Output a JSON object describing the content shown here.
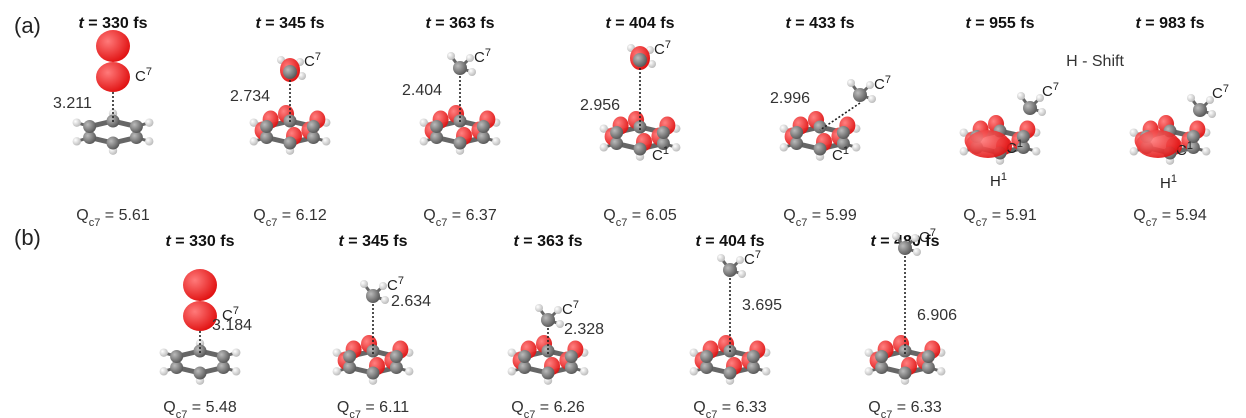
{
  "panels": [
    {
      "label": "(a)",
      "frames": [
        {
          "time": "330 fs",
          "distance": "3.211",
          "charge": "5.61",
          "atoms": [
            "C7"
          ]
        },
        {
          "time": "345 fs",
          "distance": "2.734",
          "charge": "6.12",
          "atoms": [
            "C7"
          ]
        },
        {
          "time": "363 fs",
          "distance": "2.404",
          "charge": "6.37",
          "atoms": [
            "C7"
          ]
        },
        {
          "time": "404 fs",
          "distance": "2.956",
          "charge": "6.05",
          "atoms": [
            "C7",
            "C1"
          ]
        },
        {
          "time": "433 fs",
          "distance": "2.996",
          "charge": "5.99",
          "atoms": [
            "C7",
            "C1"
          ]
        },
        {
          "time": "955 fs",
          "distance": "",
          "charge": "5.91",
          "atoms": [
            "C7",
            "C1",
            "H1"
          ]
        },
        {
          "time": "983 fs",
          "distance": "",
          "charge": "5.94",
          "atoms": [
            "C1",
            "C7",
            "H1"
          ]
        }
      ],
      "note": "H - Shift"
    },
    {
      "label": "(b)",
      "frames": [
        {
          "time": "330 fs",
          "distance": "3.184",
          "charge": "5.48",
          "atoms": [
            "C7"
          ]
        },
        {
          "time": "345 fs",
          "distance": "2.634",
          "charge": "6.11",
          "atoms": [
            "C7"
          ]
        },
        {
          "time": "363 fs",
          "distance": "2.328",
          "charge": "6.26",
          "atoms": [
            "C7"
          ]
        },
        {
          "time": "404 fs",
          "distance": "3.695",
          "charge": "6.33",
          "atoms": [
            "C7"
          ]
        },
        {
          "time": "480 fs",
          "distance": "6.906",
          "charge": "6.33",
          "atoms": [
            "C7"
          ]
        }
      ]
    }
  ],
  "symbols": {
    "time_var": "t",
    "equals": " = ",
    "charge_var": "Q",
    "charge_sub": "c7"
  },
  "colors": {
    "orbital": "#e01010",
    "carbon": "#555555",
    "hydrogen": "#e8e8e8",
    "bond": "#666666"
  }
}
